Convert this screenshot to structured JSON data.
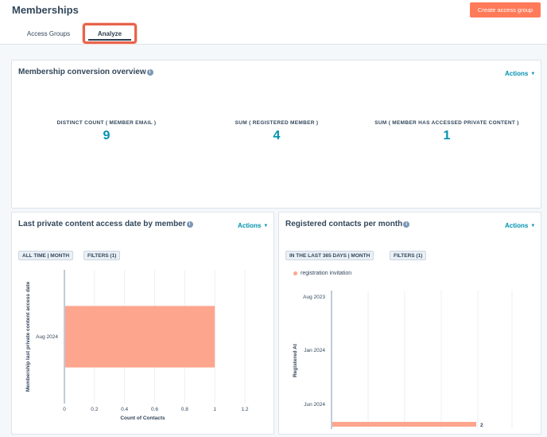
{
  "header": {
    "title": "Memberships",
    "create_button": "Create access group",
    "tabs": [
      {
        "label": "Access Groups"
      },
      {
        "label": "Analyze"
      }
    ]
  },
  "overview": {
    "title": "Membership conversion overview",
    "actions": "Actions",
    "kpis": [
      {
        "label": "DISTINCT COUNT ( MEMBER EMAIL )",
        "value": "9"
      },
      {
        "label": "SUM ( REGISTERED MEMBER )",
        "value": "4"
      },
      {
        "label": "SUM ( MEMBER HAS ACCESSED PRIVATE CONTENT )",
        "value": "1"
      }
    ]
  },
  "left_report": {
    "title": "Last private content access date by member",
    "actions": "Actions",
    "tags": [
      "ALL TIME | MONTH",
      "FILTERS (1)"
    ]
  },
  "right_report": {
    "title": "Registered contacts per month",
    "actions": "Actions",
    "tags": [
      "IN THE LAST 365 DAYS | MONTH",
      "FILTERS (1)"
    ],
    "legend": "registration invitation"
  },
  "colors": {
    "accent": "#ff7a59",
    "link": "#0091ae",
    "bar": "#fea58e"
  },
  "icons": {
    "info": "info-icon",
    "caret": "chevron-down-icon"
  },
  "chart_data": [
    {
      "type": "bar",
      "orientation": "horizontal",
      "categories": [
        "Aug 2024"
      ],
      "values": [
        1
      ],
      "xlabel": "Count of Contacts",
      "ylabel": "Membership last private content access date",
      "xlim": [
        0,
        1.2
      ],
      "xticks": [
        "0",
        "0.2",
        "0.4",
        "0.6",
        "0.8",
        "1",
        "1.2"
      ],
      "grid": true
    },
    {
      "type": "bar",
      "orientation": "horizontal",
      "categories": [
        "Aug 2023",
        "Jan 2024",
        "Jun 2024"
      ],
      "series": [
        {
          "name": "registration invitation",
          "values": [
            0,
            0,
            2
          ]
        }
      ],
      "data_labels": [
        "2"
      ],
      "ylabel": "Registered At",
      "grid": true
    }
  ]
}
